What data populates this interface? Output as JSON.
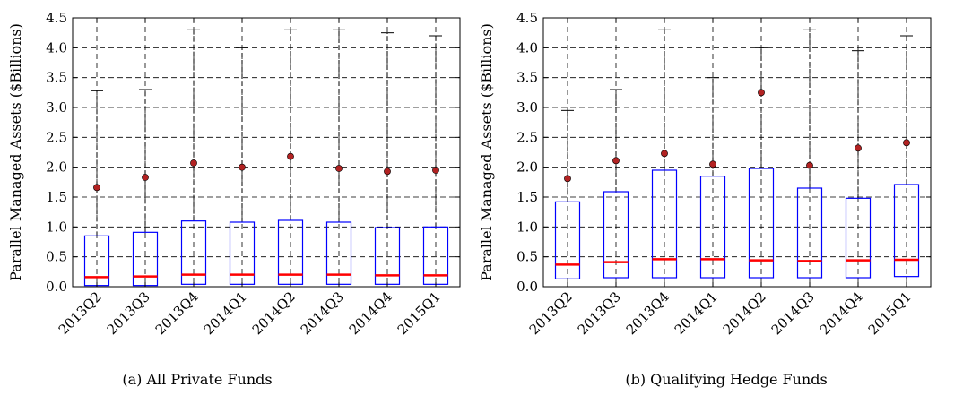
{
  "colors": {
    "box": "#0000ff",
    "median": "#ff0000",
    "whisker": "#000000",
    "outlier": "#b22222",
    "grid": "#000000"
  },
  "chart_data": [
    {
      "type": "box",
      "caption": "(a)  All Private Funds",
      "ylabel": "Parallel Managed Assets ($Billions)",
      "ylim": [
        0,
        4.5
      ],
      "yticks": [
        "0.0",
        "0.5",
        "1.0",
        "1.5",
        "2.0",
        "2.5",
        "3.0",
        "3.5",
        "4.0",
        "4.5"
      ],
      "grid": true,
      "categories": [
        "2013Q2",
        "2013Q3",
        "2013Q4",
        "2014Q1",
        "2014Q2",
        "2014Q3",
        "2014Q4",
        "2015Q1"
      ],
      "boxes": [
        {
          "q1": 0.02,
          "median": 0.16,
          "q3": 0.85,
          "whisker_low": 0.0,
          "whisker_high": 3.28,
          "outlier": 1.66
        },
        {
          "q1": 0.02,
          "median": 0.17,
          "q3": 0.91,
          "whisker_low": 0.0,
          "whisker_high": 3.3,
          "outlier": 1.83
        },
        {
          "q1": 0.04,
          "median": 0.2,
          "q3": 1.1,
          "whisker_low": 0.0,
          "whisker_high": 4.3,
          "outlier": 2.07
        },
        {
          "q1": 0.04,
          "median": 0.2,
          "q3": 1.08,
          "whisker_low": 0.0,
          "whisker_high": 4.0,
          "outlier": 2.0
        },
        {
          "q1": 0.04,
          "median": 0.2,
          "q3": 1.11,
          "whisker_low": 0.0,
          "whisker_high": 4.3,
          "outlier": 2.18
        },
        {
          "q1": 0.04,
          "median": 0.2,
          "q3": 1.08,
          "whisker_low": 0.0,
          "whisker_high": 4.3,
          "outlier": 1.98
        },
        {
          "q1": 0.04,
          "median": 0.19,
          "q3": 0.99,
          "whisker_low": 0.0,
          "whisker_high": 4.25,
          "outlier": 1.93
        },
        {
          "q1": 0.04,
          "median": 0.19,
          "q3": 1.0,
          "whisker_low": 0.0,
          "whisker_high": 4.2,
          "outlier": 1.95
        }
      ]
    },
    {
      "type": "box",
      "caption": "(b)  Qualifying Hedge Funds",
      "ylabel": "Parallel Managed Assets ($Billions)",
      "ylim": [
        0,
        4.5
      ],
      "yticks": [
        "0.0",
        "0.5",
        "1.0",
        "1.5",
        "2.0",
        "2.5",
        "3.0",
        "3.5",
        "4.0",
        "4.5"
      ],
      "grid": true,
      "categories": [
        "2013Q2",
        "2013Q3",
        "2013Q4",
        "2014Q1",
        "2014Q2",
        "2014Q3",
        "2014Q4",
        "2015Q1"
      ],
      "boxes": [
        {
          "q1": 0.13,
          "median": 0.37,
          "q3": 1.42,
          "whisker_low": 0.0,
          "whisker_high": 2.95,
          "outlier": 1.81
        },
        {
          "q1": 0.15,
          "median": 0.41,
          "q3": 1.59,
          "whisker_low": 0.0,
          "whisker_high": 3.3,
          "outlier": 2.11
        },
        {
          "q1": 0.15,
          "median": 0.46,
          "q3": 1.95,
          "whisker_low": 0.0,
          "whisker_high": 4.3,
          "outlier": 2.23
        },
        {
          "q1": 0.15,
          "median": 0.46,
          "q3": 1.85,
          "whisker_low": 0.0,
          "whisker_high": 3.5,
          "outlier": 2.05
        },
        {
          "q1": 0.15,
          "median": 0.44,
          "q3": 1.98,
          "whisker_low": 0.0,
          "whisker_high": 4.0,
          "outlier": 3.25
        },
        {
          "q1": 0.15,
          "median": 0.43,
          "q3": 1.65,
          "whisker_low": 0.0,
          "whisker_high": 4.3,
          "outlier": 2.03
        },
        {
          "q1": 0.15,
          "median": 0.44,
          "q3": 1.48,
          "whisker_low": 0.0,
          "whisker_high": 3.95,
          "outlier": 2.32
        },
        {
          "q1": 0.17,
          "median": 0.45,
          "q3": 1.71,
          "whisker_low": 0.0,
          "whisker_high": 4.2,
          "outlier": 2.41
        }
      ]
    }
  ]
}
